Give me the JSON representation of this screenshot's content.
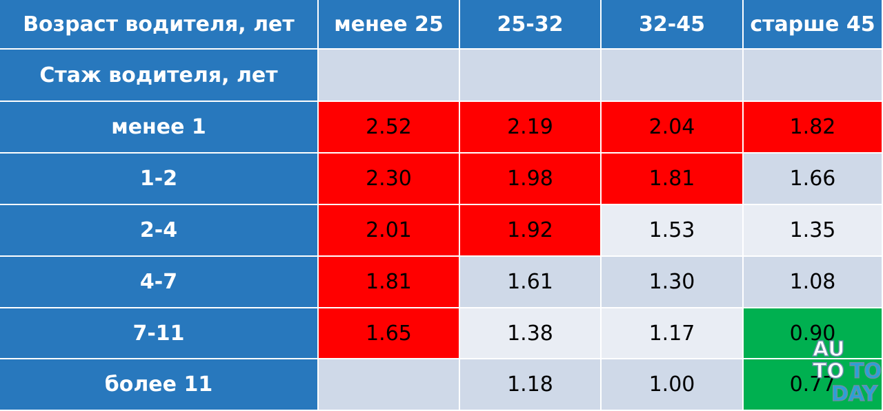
{
  "table": {
    "header": [
      "Возраст водителя, лет",
      "менее 25",
      "25-32",
      "32-45",
      "старше 45"
    ],
    "subheader": "Стаж водителя, лет",
    "rows": [
      {
        "label": "менее 1",
        "cells": [
          "2.52",
          "2.19",
          "2.04",
          "1.82"
        ],
        "colors": [
          "#ff0000",
          "#ff0000",
          "#ff0000",
          "#ff0000"
        ]
      },
      {
        "label": "1-2",
        "cells": [
          "2.30",
          "1.98",
          "1.81",
          "1.66"
        ],
        "colors": [
          "#ff0000",
          "#ff0000",
          "#ff0000",
          "#cfd9e8"
        ]
      },
      {
        "label": "2-4",
        "cells": [
          "2.01",
          "1.92",
          "1.53",
          "1.35"
        ],
        "colors": [
          "#ff0000",
          "#ff0000",
          "#e9edf4",
          "#e9edf4"
        ]
      },
      {
        "label": "4-7",
        "cells": [
          "1.81",
          "1.61",
          "1.30",
          "1.08"
        ],
        "colors": [
          "#ff0000",
          "#cfd9e8",
          "#cfd9e8",
          "#cfd9e8"
        ]
      },
      {
        "label": "7-11",
        "cells": [
          "1.65",
          "1.38",
          "1.17",
          "0.90"
        ],
        "colors": [
          "#ff0000",
          "#e9edf4",
          "#e9edf4",
          "#00b050"
        ]
      },
      {
        "label": "более 11",
        "cells": [
          null,
          "1.18",
          "1.00",
          "0.77"
        ],
        "colors": [
          "#cfd9e8",
          "#cfd9e8",
          "#cfd9e8",
          "#00b050"
        ]
      }
    ]
  },
  "watermark": [
    "AU",
    "TO",
    "TO",
    "DAY"
  ]
}
